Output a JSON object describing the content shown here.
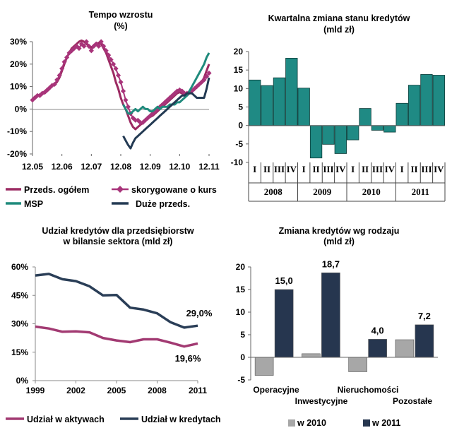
{
  "chart_data": [
    {
      "id": "tempo",
      "type": "line",
      "title": [
        "Tempo  wzrostu",
        "(%)"
      ],
      "y_ticks": [
        "30%",
        "20%",
        "10%",
        "0%",
        "-10%",
        "-20%"
      ],
      "ylim": [
        -20,
        30
      ],
      "x_ticks": [
        "12.05",
        "12.06",
        "12.07",
        "12.08",
        "12.09",
        "12.10",
        "12.11"
      ],
      "x_start": 2005.917,
      "x_end": 2011.917,
      "colors": {
        "total": "#9c2a62",
        "adjusted": "#a8347a",
        "msp": "#1f8a7c",
        "large": "#233a53"
      },
      "series": [
        {
          "key": "total",
          "name": "Przeds. ogółem",
          "marker": "none",
          "x": [
            2005.917,
            2006.0,
            2006.083,
            2006.167,
            2006.25,
            2006.333,
            2006.417,
            2006.5,
            2006.583,
            2006.667,
            2006.75,
            2006.833,
            2006.917,
            2007.0,
            2007.083,
            2007.167,
            2007.25,
            2007.333,
            2007.417,
            2007.5,
            2007.583,
            2007.667,
            2007.75,
            2007.833,
            2007.917,
            2008.0,
            2008.083,
            2008.167,
            2008.25,
            2008.333,
            2008.417,
            2008.5,
            2008.583,
            2008.667,
            2008.75,
            2008.833,
            2008.917,
            2009.0,
            2009.083,
            2009.167,
            2009.25,
            2009.333,
            2009.417,
            2009.5,
            2009.583,
            2009.667,
            2009.75,
            2009.833,
            2009.917,
            2010.0,
            2010.083,
            2010.167,
            2010.25,
            2010.333,
            2010.417,
            2010.5,
            2010.583,
            2010.667,
            2010.75,
            2010.833,
            2010.917,
            2011.0,
            2011.083,
            2011.167,
            2011.25,
            2011.333,
            2011.417,
            2011.5,
            2011.583,
            2011.667,
            2011.75,
            2011.833,
            2011.917
          ],
          "values": [
            4.5,
            5.5,
            6,
            6.5,
            7,
            7,
            8,
            9,
            10.5,
            11,
            12,
            14,
            17,
            20,
            23,
            25,
            27,
            28,
            29,
            30,
            30.5,
            30,
            29,
            28,
            27.5,
            28,
            29,
            29.5,
            29,
            27,
            25,
            22,
            19,
            16,
            12,
            9,
            5,
            2,
            0,
            -3,
            -6,
            -8,
            -9,
            -8,
            -7,
            -6,
            -5,
            -4,
            -3.5,
            -3,
            -2,
            -1,
            0,
            1,
            2,
            3,
            4,
            5,
            6,
            7,
            7.5,
            7,
            6,
            6,
            7,
            8,
            9,
            10,
            11,
            12,
            14,
            17,
            20
          ]
        },
        {
          "key": "adjusted",
          "name": "skorygowane o kurs",
          "marker": "diamond",
          "x": [
            2005.917,
            2006.0,
            2006.083,
            2006.167,
            2006.25,
            2006.333,
            2006.417,
            2006.5,
            2006.583,
            2006.667,
            2006.75,
            2006.833,
            2006.917,
            2007.0,
            2007.083,
            2007.167,
            2007.25,
            2007.333,
            2007.417,
            2007.5,
            2007.583,
            2007.667,
            2007.75,
            2007.833,
            2007.917,
            2008.0,
            2008.083,
            2008.167,
            2008.25,
            2008.333,
            2008.417,
            2008.5,
            2008.583,
            2008.667,
            2008.75,
            2008.833,
            2008.917,
            2009.0,
            2009.083,
            2009.167,
            2009.25,
            2009.333,
            2009.417,
            2009.5,
            2009.583,
            2009.667,
            2009.75,
            2009.833,
            2009.917,
            2010.0,
            2010.083,
            2010.167,
            2010.25,
            2010.333,
            2010.417,
            2010.5,
            2010.583,
            2010.667,
            2010.75,
            2010.833,
            2010.917,
            2011.0,
            2011.083,
            2011.167,
            2011.25,
            2011.333,
            2011.417,
            2011.5,
            2011.583,
            2011.667,
            2011.75,
            2011.833,
            2011.917
          ],
          "values": [
            4,
            5,
            6,
            6,
            7,
            7.5,
            8.5,
            9.5,
            10.5,
            11,
            13,
            15,
            18,
            21,
            23,
            25,
            26,
            27,
            28,
            27,
            29,
            28,
            30,
            28,
            26,
            28,
            29,
            28,
            30,
            28,
            26,
            24,
            22,
            20,
            18,
            15,
            12,
            8,
            4,
            1,
            -2,
            -4,
            -5,
            -5,
            -6,
            -6,
            -5,
            -4,
            -3,
            -2,
            -1,
            0,
            1,
            2,
            3,
            4,
            5,
            6,
            7,
            8,
            8.5,
            8,
            7,
            7,
            7.5,
            8,
            9,
            10,
            11,
            12,
            13,
            14.5,
            16
          ]
        },
        {
          "key": "msp",
          "name": "MSP",
          "marker": "none",
          "x": [
            2009.0,
            2009.083,
            2009.167,
            2009.25,
            2009.333,
            2009.417,
            2009.5,
            2009.583,
            2009.667,
            2009.75,
            2009.833,
            2009.917,
            2010.0,
            2010.083,
            2010.167,
            2010.25,
            2010.333,
            2010.417,
            2010.5,
            2010.583,
            2010.667,
            2010.75,
            2010.833,
            2010.917,
            2011.0,
            2011.083,
            2011.167,
            2011.25,
            2011.333,
            2011.417,
            2011.5,
            2011.583,
            2011.667,
            2011.75,
            2011.833,
            2011.917
          ],
          "values": [
            2,
            0,
            -2,
            -2,
            -1,
            0,
            -1,
            0,
            1,
            0,
            0,
            -1,
            -1,
            0,
            1,
            0,
            1,
            1,
            1,
            2,
            2,
            2,
            3,
            3,
            4,
            5,
            6,
            8,
            10,
            12,
            14,
            16,
            18,
            20,
            23,
            25
          ]
        },
        {
          "key": "large",
          "name": "Duże przeds.",
          "marker": "none",
          "x": [
            2009.0,
            2009.083,
            2009.167,
            2009.25,
            2009.333,
            2009.417,
            2009.5,
            2009.583,
            2009.667,
            2009.75,
            2009.833,
            2009.917,
            2010.0,
            2010.083,
            2010.167,
            2010.25,
            2010.333,
            2010.417,
            2010.5,
            2010.583,
            2010.667,
            2010.75,
            2010.833,
            2010.917,
            2011.0,
            2011.083,
            2011.167,
            2011.25,
            2011.333,
            2011.417,
            2011.5,
            2011.583,
            2011.667,
            2011.75,
            2011.833,
            2011.917
          ],
          "values": [
            -12,
            -14,
            -16,
            -17.5,
            -15,
            -13,
            -12,
            -11,
            -10,
            -9,
            -8,
            -7,
            -6,
            -5,
            -4,
            -3,
            -2,
            -1,
            0,
            1,
            2,
            3,
            4,
            5,
            6,
            6,
            7,
            7,
            7,
            6,
            5,
            5,
            5,
            5,
            9,
            14
          ]
        }
      ]
    },
    {
      "id": "kwartalna",
      "type": "bar",
      "title": [
        "Kwartalna  zmiana  stanu  kredytów",
        "(mld  zł)"
      ],
      "y_ticks": [
        "20",
        "15",
        "10",
        "5",
        "0",
        "-5",
        "-10"
      ],
      "ylim": [
        -10,
        20
      ],
      "color": "#1f8a84",
      "categories": [
        "I",
        "II",
        "III",
        "IV",
        "I",
        "II",
        "III",
        "IV",
        "I",
        "II",
        "III",
        "IV",
        "I",
        "II",
        "III",
        "IV"
      ],
      "years": [
        "2008",
        "2009",
        "2010",
        "2011"
      ],
      "values": [
        12.3,
        10.8,
        12.9,
        18.2,
        10.1,
        -8.8,
        -5.1,
        -7.6,
        -3.9,
        4.6,
        -1.3,
        -1.8,
        6.0,
        10.9,
        13.8,
        13.6
      ]
    },
    {
      "id": "udzial",
      "type": "line",
      "title": [
        "Udział kredytów dla przedsiębiorstw",
        "w bilansie sektora (mld zł)"
      ],
      "y_ticks": [
        "60%",
        "45%",
        "30%",
        "15%",
        "0%"
      ],
      "ylim": [
        0,
        60
      ],
      "x_ticks": [
        "1999",
        "2002",
        "2005",
        "2008",
        "2011"
      ],
      "x": [
        1999,
        2000,
        2001,
        2002,
        2003,
        2004,
        2005,
        2006,
        2007,
        2008,
        2009,
        2010,
        2011
      ],
      "series": [
        {
          "key": "aktywa",
          "name": "Udział w aktywach",
          "color": "#a23a72",
          "values": [
            28.5,
            27.5,
            25.8,
            26.0,
            25.5,
            22.5,
            21.2,
            20.3,
            21.8,
            21.8,
            20.0,
            18.0,
            19.6
          ]
        },
        {
          "key": "kredyty",
          "name": "Udział w kredytach",
          "color": "#2a3e57",
          "values": [
            55.5,
            56.3,
            53.5,
            52.5,
            49.8,
            45.0,
            45.2,
            38.5,
            37.5,
            35.5,
            30.8,
            28.0,
            29.0
          ]
        }
      ],
      "annotations": [
        "29,0%",
        "19,6%"
      ]
    },
    {
      "id": "rodzaj",
      "type": "bar",
      "title": [
        "Zmiana  kredytów  wg  rodzaju",
        "(mld  zł)"
      ],
      "y_ticks": [
        "20",
        "15",
        "10",
        "5",
        "0",
        "-5"
      ],
      "ylim": [
        -5,
        20
      ],
      "categories": [
        "Operacyjne",
        "Inwestycyjne",
        "Nieruchomości",
        "Pozostałe"
      ],
      "series": [
        {
          "name": "w 2010",
          "color": "#a7a7a7",
          "values": [
            -4.0,
            0.8,
            -3.2,
            3.9
          ]
        },
        {
          "name": "w 2011",
          "color": "#26364f",
          "values": [
            15.0,
            18.7,
            4.0,
            7.2
          ]
        }
      ],
      "data_labels": [
        "15,0",
        "18,7",
        "4,0",
        "7,2"
      ]
    }
  ]
}
